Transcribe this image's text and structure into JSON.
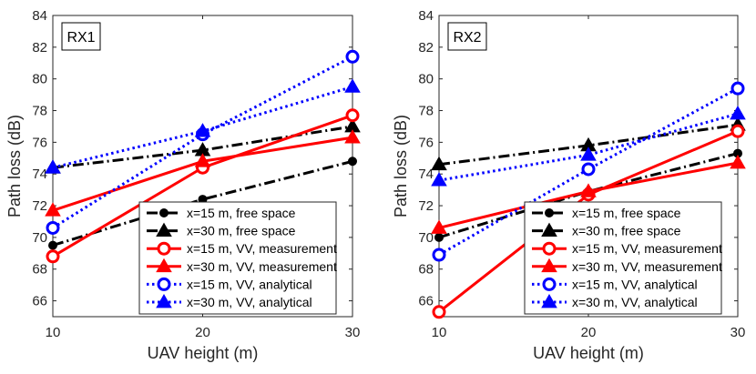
{
  "chart_data": [
    {
      "type": "line",
      "panel_label": "RX1",
      "xlabel": "UAV height (m)",
      "ylabel": "Path loss (dB)",
      "x": [
        10,
        20,
        30
      ],
      "xlim": [
        10,
        30
      ],
      "ylim": [
        65,
        84
      ],
      "xticks": [
        "10",
        "20",
        "30"
      ],
      "yticks": [
        "66",
        "68",
        "70",
        "72",
        "74",
        "76",
        "78",
        "80",
        "82",
        "84"
      ],
      "legend_position": "bottom-right",
      "series": [
        {
          "name": "x=15 m, free space",
          "values": [
            69.5,
            72.4,
            74.8
          ],
          "color": "#000000",
          "dash": "dashdot",
          "marker": "dot"
        },
        {
          "name": "x=30 m, free space",
          "values": [
            74.4,
            75.5,
            77.0
          ],
          "color": "#000000",
          "dash": "dashdot",
          "marker": "triangle"
        },
        {
          "name": "x=15 m, VV, measurement",
          "values": [
            68.8,
            74.4,
            77.7
          ],
          "color": "#ff0000",
          "dash": "solid",
          "marker": "circle"
        },
        {
          "name": "x=30 m, VV, measurement",
          "values": [
            71.7,
            74.8,
            76.3
          ],
          "color": "#ff0000",
          "dash": "solid",
          "marker": "triangle"
        },
        {
          "name": "x=15 m, VV, analytical",
          "values": [
            70.6,
            76.5,
            81.4
          ],
          "color": "#0000ff",
          "dash": "dotted",
          "marker": "circle"
        },
        {
          "name": "x=30 m, VV, analytical",
          "values": [
            74.4,
            76.7,
            79.5
          ],
          "color": "#0000ff",
          "dash": "dotted",
          "marker": "triangle"
        }
      ]
    },
    {
      "type": "line",
      "panel_label": "RX2",
      "xlabel": "UAV height (m)",
      "ylabel": "Path loss (dB)",
      "x": [
        10,
        20,
        30
      ],
      "xlim": [
        10,
        30
      ],
      "ylim": [
        65,
        84
      ],
      "xticks": [
        "10",
        "20",
        "30"
      ],
      "yticks": [
        "66",
        "68",
        "70",
        "72",
        "74",
        "76",
        "78",
        "80",
        "82",
        "84"
      ],
      "legend_position": "bottom-right",
      "series": [
        {
          "name": "x=15 m, free space",
          "values": [
            70.0,
            72.9,
            75.3
          ],
          "color": "#000000",
          "dash": "dashdot",
          "marker": "dot"
        },
        {
          "name": "x=30 m, free space",
          "values": [
            74.6,
            75.8,
            77.1
          ],
          "color": "#000000",
          "dash": "dashdot",
          "marker": "triangle"
        },
        {
          "name": "x=15 m, VV, measurement",
          "values": [
            65.3,
            72.7,
            76.7
          ],
          "color": "#ff0000",
          "dash": "solid",
          "marker": "circle"
        },
        {
          "name": "x=30 m, VV, measurement",
          "values": [
            70.6,
            72.9,
            74.7
          ],
          "color": "#ff0000",
          "dash": "solid",
          "marker": "triangle"
        },
        {
          "name": "x=15 m, VV, analytical",
          "values": [
            68.9,
            74.3,
            79.4
          ],
          "color": "#0000ff",
          "dash": "dotted",
          "marker": "circle"
        },
        {
          "name": "x=30 m, VV, analytical",
          "values": [
            73.6,
            75.2,
            77.8
          ],
          "color": "#0000ff",
          "dash": "dotted",
          "marker": "triangle"
        }
      ]
    }
  ]
}
